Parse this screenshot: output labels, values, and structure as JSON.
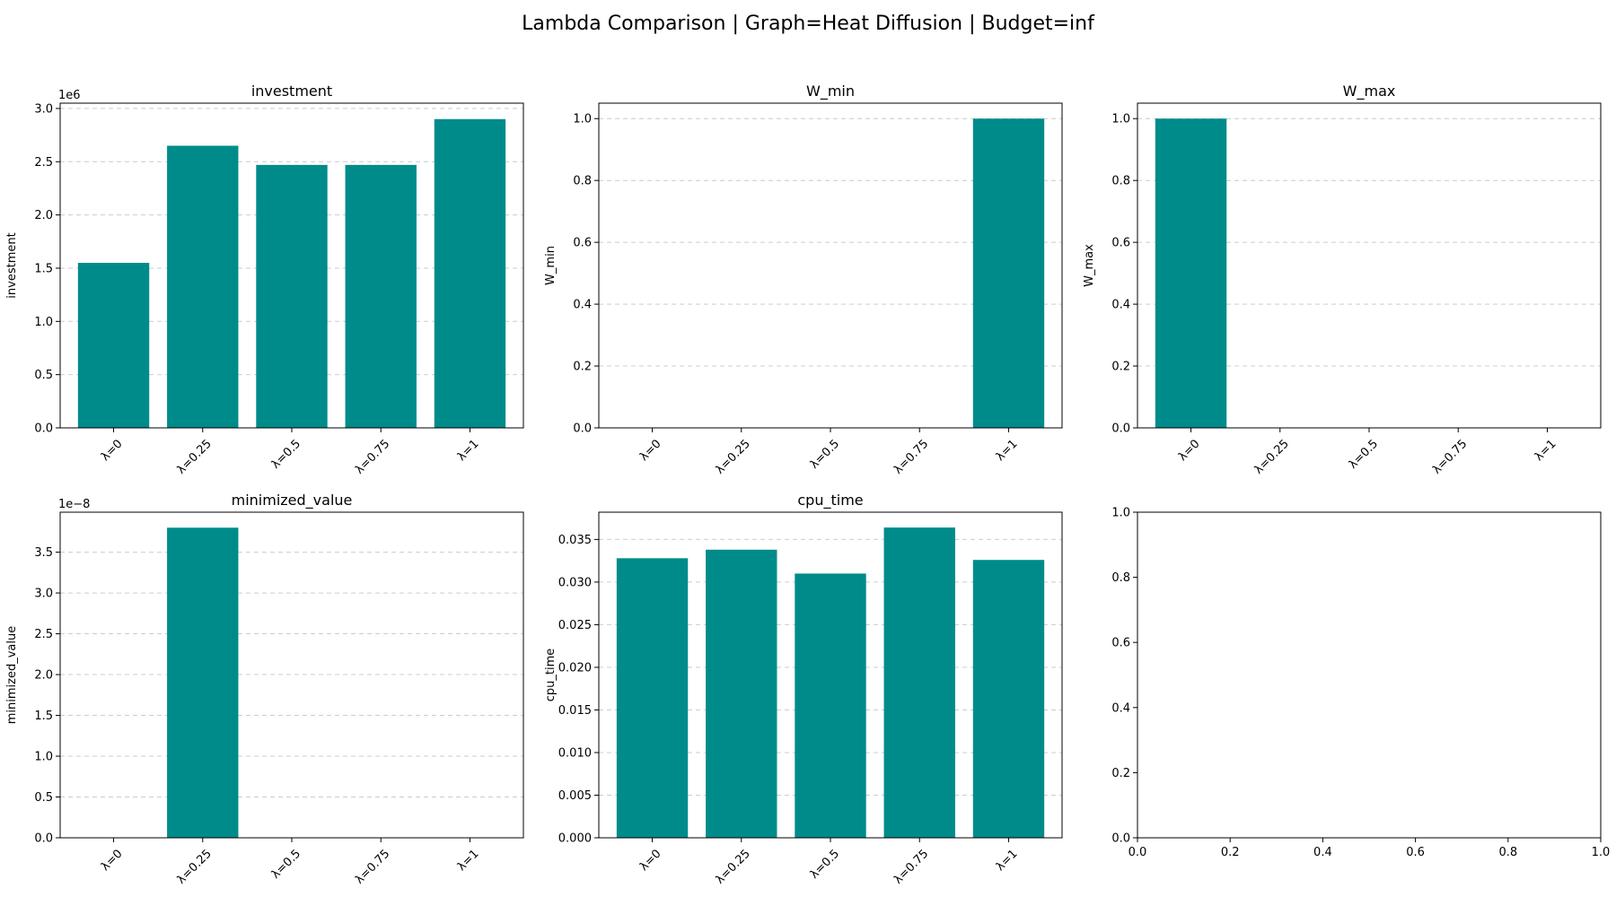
{
  "figure": {
    "title": "Lambda Comparison | Graph=Heat Diffusion | Budget=inf",
    "bar_color": "#008b8b",
    "grid_color": "#cccccc"
  },
  "chart_data": [
    {
      "type": "bar",
      "title": "investment",
      "ylabel": "investment",
      "xlabel": "",
      "categories": [
        "λ=0",
        "λ=0.25",
        "λ=0.5",
        "λ=0.75",
        "λ=1"
      ],
      "values": [
        1550000,
        2650000,
        2470000,
        2470000,
        2900000
      ],
      "ylim": [
        0,
        3050000
      ],
      "yticks": [
        0,
        500000,
        1000000,
        1500000,
        2000000,
        2500000,
        3000000
      ],
      "ytick_labels": [
        "0.0",
        "0.5",
        "1.0",
        "1.5",
        "2.0",
        "2.5",
        "3.0"
      ],
      "offset_text": "1e6",
      "grid": true
    },
    {
      "type": "bar",
      "title": "W_min",
      "ylabel": "W_min",
      "xlabel": "",
      "categories": [
        "λ=0",
        "λ=0.25",
        "λ=0.5",
        "λ=0.75",
        "λ=1"
      ],
      "values": [
        0,
        0,
        0,
        0,
        1.0
      ],
      "ylim": [
        0,
        1.05
      ],
      "yticks": [
        0,
        0.2,
        0.4,
        0.6,
        0.8,
        1.0
      ],
      "ytick_labels": [
        "0.0",
        "0.2",
        "0.4",
        "0.6",
        "0.8",
        "1.0"
      ],
      "offset_text": "",
      "grid": true
    },
    {
      "type": "bar",
      "title": "W_max",
      "ylabel": "W_max",
      "xlabel": "",
      "categories": [
        "λ=0",
        "λ=0.25",
        "λ=0.5",
        "λ=0.75",
        "λ=1"
      ],
      "values": [
        1.0,
        0,
        0,
        0,
        0
      ],
      "ylim": [
        0,
        1.05
      ],
      "yticks": [
        0,
        0.2,
        0.4,
        0.6,
        0.8,
        1.0
      ],
      "ytick_labels": [
        "0.0",
        "0.2",
        "0.4",
        "0.6",
        "0.8",
        "1.0"
      ],
      "offset_text": "",
      "grid": true
    },
    {
      "type": "bar",
      "title": "minimized_value",
      "ylabel": "minimized_value",
      "xlabel": "",
      "categories": [
        "λ=0",
        "λ=0.25",
        "λ=0.5",
        "λ=0.75",
        "λ=1"
      ],
      "values": [
        0,
        3.8e-08,
        0,
        0,
        0
      ],
      "ylim": [
        0,
        3.99e-08
      ],
      "yticks": [
        0,
        5e-09,
        1e-08,
        1.5e-08,
        2e-08,
        2.5e-08,
        3e-08,
        3.5e-08
      ],
      "ytick_labels": [
        "0.0",
        "0.5",
        "1.0",
        "1.5",
        "2.0",
        "2.5",
        "3.0",
        "3.5"
      ],
      "offset_text": "1e−8",
      "grid": true
    },
    {
      "type": "bar",
      "title": "cpu_time",
      "ylabel": "cpu_time",
      "xlabel": "",
      "categories": [
        "λ=0",
        "λ=0.25",
        "λ=0.5",
        "λ=0.75",
        "λ=1"
      ],
      "values": [
        0.0328,
        0.0338,
        0.031,
        0.0364,
        0.0326
      ],
      "ylim": [
        0,
        0.0382
      ],
      "yticks": [
        0,
        0.005,
        0.01,
        0.015,
        0.02,
        0.025,
        0.03,
        0.035
      ],
      "ytick_labels": [
        "0.000",
        "0.005",
        "0.010",
        "0.015",
        "0.020",
        "0.025",
        "0.030",
        "0.035"
      ],
      "offset_text": "",
      "grid": true
    },
    {
      "type": "empty",
      "title": "",
      "ylabel": "",
      "xlabel": "",
      "xlim": [
        0,
        1
      ],
      "ylim": [
        0,
        1
      ],
      "xticks": [
        0,
        0.2,
        0.4,
        0.6,
        0.8,
        1.0
      ],
      "xtick_labels": [
        "0.0",
        "0.2",
        "0.4",
        "0.6",
        "0.8",
        "1.0"
      ],
      "yticks": [
        0,
        0.2,
        0.4,
        0.6,
        0.8,
        1.0
      ],
      "ytick_labels": [
        "0.0",
        "0.2",
        "0.4",
        "0.6",
        "0.8",
        "1.0"
      ],
      "grid": false
    }
  ]
}
